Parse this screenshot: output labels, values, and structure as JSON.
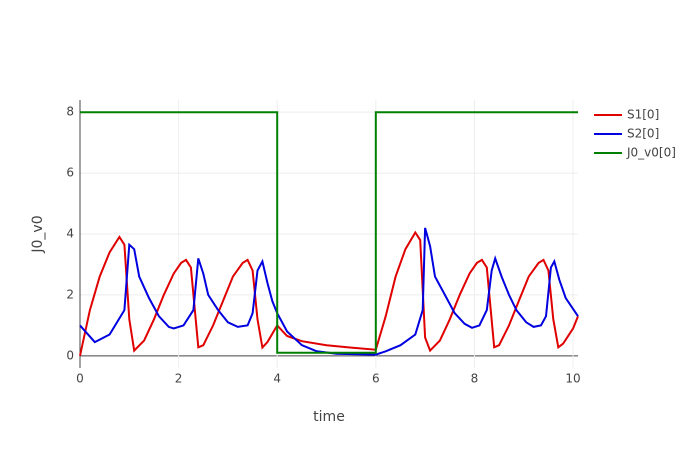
{
  "chart_data": {
    "type": "line",
    "x_label": "time",
    "y_label": "J0_v0",
    "xlim": [
      0,
      10.1
    ],
    "ylim": [
      -0.4,
      8.4
    ],
    "xticks": [
      0,
      2,
      4,
      6,
      8,
      10
    ],
    "yticks": [
      0,
      2,
      4,
      6,
      8
    ],
    "grid": true,
    "legend": "outside-right",
    "series": [
      {
        "name": "S1[0]",
        "color": "#e00000",
        "x": [
          0,
          0.2,
          0.4,
          0.6,
          0.8,
          0.9,
          1.0,
          1.1,
          1.3,
          1.5,
          1.7,
          1.9,
          2.05,
          2.15,
          2.25,
          2.4,
          2.5,
          2.7,
          2.9,
          3.1,
          3.3,
          3.4,
          3.5,
          3.6,
          3.7,
          3.8,
          4.0,
          4.2,
          4.5,
          5.0,
          5.5,
          6.0,
          6.2,
          6.4,
          6.6,
          6.8,
          6.9,
          7.0,
          7.1,
          7.3,
          7.5,
          7.7,
          7.9,
          8.05,
          8.15,
          8.25,
          8.4,
          8.5,
          8.7,
          8.9,
          9.1,
          9.3,
          9.4,
          9.5,
          9.6,
          9.7,
          9.8,
          10.0,
          10.1
        ],
        "values": [
          0,
          1.5,
          2.6,
          3.4,
          3.9,
          3.65,
          1.2,
          0.17,
          0.5,
          1.2,
          2.0,
          2.7,
          3.05,
          3.15,
          2.9,
          0.28,
          0.35,
          1.0,
          1.8,
          2.6,
          3.05,
          3.15,
          2.8,
          1.2,
          0.27,
          0.45,
          1.0,
          0.65,
          0.48,
          0.35,
          0.27,
          0.2,
          1.3,
          2.6,
          3.5,
          4.05,
          3.8,
          0.6,
          0.17,
          0.5,
          1.2,
          2.0,
          2.7,
          3.05,
          3.15,
          2.9,
          0.28,
          0.35,
          1.0,
          1.8,
          2.6,
          3.05,
          3.15,
          2.8,
          1.2,
          0.28,
          0.4,
          0.9,
          1.3
        ]
      },
      {
        "name": "S2[0]",
        "color": "#0000e0",
        "x": [
          0,
          0.3,
          0.6,
          0.9,
          1.0,
          1.1,
          1.2,
          1.4,
          1.6,
          1.8,
          1.9,
          2.1,
          2.3,
          2.4,
          2.5,
          2.6,
          2.8,
          3.0,
          3.2,
          3.4,
          3.5,
          3.6,
          3.7,
          3.8,
          3.9,
          4.0,
          4.2,
          4.5,
          4.8,
          5.2,
          6.0,
          6.2,
          6.5,
          6.8,
          6.95,
          7.0,
          7.1,
          7.2,
          7.4,
          7.6,
          7.8,
          7.95,
          8.1,
          8.25,
          8.35,
          8.42,
          8.55,
          8.7,
          8.85,
          9.05,
          9.2,
          9.35,
          9.45,
          9.55,
          9.62,
          9.72,
          9.85,
          10.1
        ],
        "values": [
          1.0,
          0.45,
          0.7,
          1.5,
          3.65,
          3.5,
          2.6,
          1.9,
          1.3,
          0.95,
          0.9,
          1.0,
          1.5,
          3.2,
          2.7,
          2.0,
          1.5,
          1.1,
          0.95,
          1.0,
          1.4,
          2.8,
          3.1,
          2.4,
          1.8,
          1.4,
          0.8,
          0.35,
          0.15,
          0.07,
          0.04,
          0.15,
          0.35,
          0.7,
          1.5,
          4.2,
          3.6,
          2.6,
          2.0,
          1.4,
          1.05,
          0.92,
          1.0,
          1.5,
          2.8,
          3.2,
          2.6,
          2.0,
          1.5,
          1.1,
          0.95,
          1.0,
          1.3,
          2.9,
          3.1,
          2.5,
          1.9,
          1.3
        ]
      },
      {
        "name": "J0_v0[0]",
        "color": "#008000",
        "x": [
          0,
          4,
          4,
          6,
          6,
          10.1
        ],
        "values": [
          8,
          8,
          0.1,
          0.1,
          8,
          8
        ]
      }
    ]
  }
}
